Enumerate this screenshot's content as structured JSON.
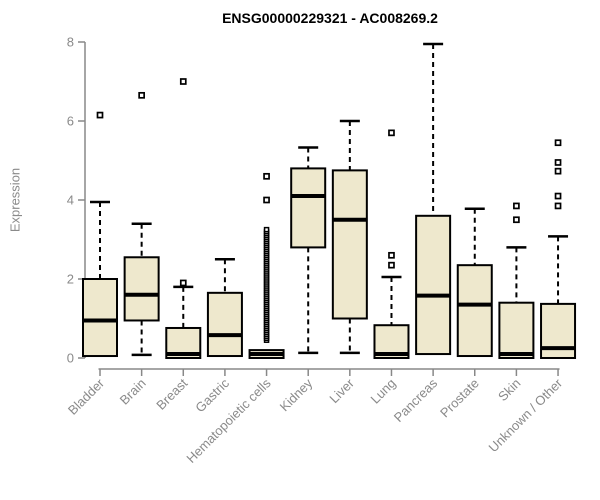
{
  "chart_data": {
    "type": "boxplot",
    "title": "ENSG00000229321 - AC008269.2",
    "ylabel": "Expression",
    "xlabel": "",
    "ylim": [
      0,
      8
    ],
    "yticks": [
      0,
      2,
      4,
      6,
      8
    ],
    "grid": false,
    "legend": "none",
    "categories": [
      "Bladder",
      "Brain",
      "Breast",
      "Gastric",
      "Hematopoietic cells",
      "Kidney",
      "Liver",
      "Lung",
      "Pancreas",
      "Prostate",
      "Skin",
      "Unknown / Other"
    ],
    "boxes": [
      {
        "category": "Bladder",
        "whisker_low": 0.05,
        "q1": 0.05,
        "median": 0.95,
        "q3": 2.0,
        "whisker_high": 3.95,
        "outliers": [
          6.15
        ]
      },
      {
        "category": "Brain",
        "whisker_low": 0.08,
        "q1": 0.95,
        "median": 1.6,
        "q3": 2.55,
        "whisker_high": 3.4,
        "outliers": [
          6.65
        ]
      },
      {
        "category": "Breast",
        "whisker_low": 0.0,
        "q1": 0.0,
        "median": 0.1,
        "q3": 0.76,
        "whisker_high": 1.8,
        "outliers": [
          1.9,
          7.0
        ]
      },
      {
        "category": "Gastric",
        "whisker_low": 0.05,
        "q1": 0.05,
        "median": 0.58,
        "q3": 1.65,
        "whisker_high": 2.5,
        "outliers": []
      },
      {
        "category": "Hematopoietic cells",
        "whisker_low": 0.0,
        "q1": 0.0,
        "median": 0.1,
        "q3": 0.2,
        "whisker_high": 0.2,
        "outliers": [
          4.0,
          4.6
        ],
        "outliers_dense": {
          "from": 0.45,
          "to": 3.25,
          "step": 0.05
        }
      },
      {
        "category": "Kidney",
        "whisker_low": 0.13,
        "q1": 2.8,
        "median": 4.1,
        "q3": 4.8,
        "whisker_high": 5.33,
        "outliers": []
      },
      {
        "category": "Liver",
        "whisker_low": 0.13,
        "q1": 1.0,
        "median": 3.5,
        "q3": 4.75,
        "whisker_high": 6.0,
        "outliers": []
      },
      {
        "category": "Lung",
        "whisker_low": 0.0,
        "q1": 0.0,
        "median": 0.1,
        "q3": 0.83,
        "whisker_high": 2.05,
        "outliers": [
          2.35,
          2.6,
          5.7
        ]
      },
      {
        "category": "Pancreas",
        "whisker_low": 0.1,
        "q1": 0.1,
        "median": 1.58,
        "q3": 3.6,
        "whisker_high": 7.95,
        "outliers": []
      },
      {
        "category": "Prostate",
        "whisker_low": 0.05,
        "q1": 0.05,
        "median": 1.35,
        "q3": 2.35,
        "whisker_high": 3.78,
        "outliers": []
      },
      {
        "category": "Skin",
        "whisker_low": 0.0,
        "q1": 0.0,
        "median": 0.1,
        "q3": 1.4,
        "whisker_high": 2.8,
        "outliers": [
          3.5,
          3.85
        ]
      },
      {
        "category": "Unknown / Other",
        "whisker_low": 0.0,
        "q1": 0.0,
        "median": 0.25,
        "q3": 1.37,
        "whisker_high": 3.08,
        "outliers": [
          3.85,
          4.1,
          4.73,
          4.95,
          5.45
        ]
      }
    ],
    "colors": {
      "box_fill": "#EEE8CD",
      "box_border": "#000000",
      "median": "#000000",
      "whisker": "#000000",
      "outlier_stroke": "#000000",
      "outlier_fill": "#FFFFFF",
      "axis": "#888888",
      "tick_label": "#8a8a8a",
      "title": "#000000",
      "background": "#FFFFFF"
    }
  }
}
